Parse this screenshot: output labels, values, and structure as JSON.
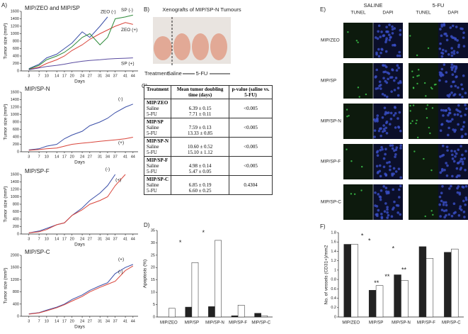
{
  "panel_labels": [
    "A)",
    "B)",
    "C)",
    "D)",
    "E)",
    "F)"
  ],
  "photo": {
    "title": "Xenografts of MIP/SP-N Tumours",
    "treatment": "Treatment:",
    "saline": "Saline",
    "fu": "5-FU"
  },
  "table": {
    "header": [
      "Treatment",
      "Mean tumor doubling time (days)",
      "p-value (saline vs. 5-FU)"
    ],
    "groups": [
      {
        "name": "MIP/ZEO",
        "rows": [
          [
            "Saline",
            "6.39 ± 0.15"
          ],
          [
            "5-FU",
            "7.71 ± 0.11"
          ]
        ],
        "p": "<0.005"
      },
      {
        "name": "MIP/SP",
        "rows": [
          [
            "Saline",
            "7.59 ± 0.13"
          ],
          [
            "5-FU",
            "13.33 ± 0.85"
          ]
        ],
        "p": "<0.005"
      },
      {
        "name": "MIP/SP-N",
        "rows": [
          [
            "Saline",
            "10.60 ± 0.52"
          ],
          [
            "5-FU",
            "15.10 ± 1.12"
          ]
        ],
        "p": "<0.005"
      },
      {
        "name": "MIP/SP-F",
        "rows": [
          [
            "Saline",
            "4.98 ± 0.14"
          ],
          [
            "5-FU",
            "5.47 ± 0.05"
          ]
        ],
        "p": "<0.005"
      },
      {
        "name": "MIP/SP-C",
        "rows": [
          [
            "Saline",
            "6.85 ± 0.19"
          ],
          [
            "5-FU",
            "6.60 ± 0.25"
          ]
        ],
        "p": "0.4304"
      }
    ]
  },
  "micrographs": {
    "groups": [
      "SALINE",
      "5-FU"
    ],
    "stains": [
      "TUNEL",
      "DAPI",
      "TUNEL",
      "DAPI"
    ],
    "rows": [
      "MIP/ZEO",
      "MIP/SP",
      "MIP/SP-N",
      "MIP/SP-F",
      "MIP/SP-C"
    ]
  },
  "chart_data": [
    {
      "type": "line",
      "title": "MIP/ZEO and MIP/SP",
      "x_label": "Days",
      "y_label": "Tumor size (mm³)",
      "x": [
        3,
        7,
        10,
        14,
        17,
        20,
        24,
        27,
        31,
        34,
        37,
        41,
        44
      ],
      "xlim": [
        0,
        46
      ],
      "xticks": [
        3,
        7,
        10,
        14,
        17,
        20,
        24,
        27,
        31,
        34,
        37,
        41,
        44
      ],
      "ylim": [
        0,
        1600
      ],
      "yticks": [
        0,
        200,
        400,
        600,
        800,
        1000,
        1200,
        1400,
        1600
      ],
      "series": [
        {
          "name": "ZEO (-)",
          "color": "#3b4fa8",
          "values": [
            60,
            180,
            350,
            450,
            600,
            750,
            1050,
            900,
            1200,
            1450,
            null,
            null,
            null
          ]
        },
        {
          "name": "ZEO (+)",
          "color": "#d9443a",
          "values": [
            40,
            100,
            200,
            300,
            400,
            550,
            700,
            850,
            1000,
            1100,
            1200,
            1300,
            1250
          ]
        },
        {
          "name": "SP (-)",
          "color": "#2e8b3a",
          "values": [
            50,
            150,
            300,
            400,
            500,
            650,
            900,
            1000,
            700,
            900,
            1400,
            1450,
            1500
          ]
        },
        {
          "name": "SP (+)",
          "color": "#5a4ca0",
          "values": [
            30,
            80,
            120,
            150,
            180,
            220,
            260,
            280,
            300,
            320,
            330,
            340,
            350
          ]
        }
      ]
    },
    {
      "type": "line",
      "title": "MIP/SP-N",
      "x_label": "Days",
      "y_label": "Tumor size (mm³)",
      "x": [
        3,
        7,
        10,
        14,
        17,
        20,
        24,
        27,
        31,
        34,
        37,
        41,
        44
      ],
      "xlim": [
        0,
        46
      ],
      "xticks": [
        3,
        7,
        10,
        14,
        17,
        20,
        24,
        27,
        31,
        34,
        37,
        41,
        44
      ],
      "ylim": [
        0,
        1600
      ],
      "yticks": [
        0,
        200,
        400,
        600,
        800,
        1000,
        1200,
        1400,
        1600
      ],
      "series": [
        {
          "name": "(-)",
          "color": "#3b4fa8",
          "values": [
            50,
            80,
            150,
            200,
            350,
            450,
            550,
            700,
            800,
            900,
            1050,
            1200,
            1280
          ]
        },
        {
          "name": "(+)",
          "color": "#d9443a",
          "values": [
            40,
            60,
            80,
            100,
            150,
            200,
            230,
            250,
            280,
            300,
            320,
            350,
            390
          ]
        }
      ]
    },
    {
      "type": "line",
      "title": "MIP/SP-F",
      "x_label": "Days",
      "y_label": "Tumor size (mm³)",
      "x": [
        3,
        7,
        10,
        14,
        17,
        20,
        24,
        27,
        31,
        34,
        37,
        41,
        44
      ],
      "xlim": [
        0,
        46
      ],
      "xticks": [
        3,
        7,
        10,
        14,
        17,
        20,
        24,
        27,
        31,
        34,
        37,
        41,
        44
      ],
      "ylim": [
        0,
        1600
      ],
      "yticks": [
        0,
        200,
        400,
        600,
        800,
        1000,
        1200,
        1400,
        1600
      ],
      "series": [
        {
          "name": "(-)",
          "color": "#3b4fa8",
          "values": [
            30,
            80,
            150,
            250,
            300,
            500,
            700,
            900,
            1100,
            1300,
            1600,
            null,
            null
          ]
        },
        {
          "name": "(+)",
          "color": "#d9443a",
          "values": [
            30,
            60,
            120,
            250,
            300,
            500,
            650,
            800,
            900,
            1000,
            1300,
            1600,
            null
          ]
        }
      ]
    },
    {
      "type": "line",
      "title": "MIP/SP-C",
      "x_label": "Days",
      "y_label": "Tumor size (mm³)",
      "x": [
        3,
        7,
        10,
        14,
        17,
        20,
        24,
        27,
        31,
        34,
        37,
        41,
        44
      ],
      "xlim": [
        0,
        46
      ],
      "xticks": [
        3,
        7,
        10,
        14,
        17,
        20,
        24,
        27,
        31,
        34,
        37,
        41,
        44
      ],
      "ylim": [
        0,
        2000
      ],
      "yticks": [
        0,
        400,
        800,
        1200,
        1600,
        2000
      ],
      "series": [
        {
          "name": "(+)",
          "color": "#3b4fa8",
          "values": [
            80,
            120,
            200,
            300,
            400,
            550,
            700,
            850,
            1000,
            1100,
            1400,
            1600,
            1700
          ]
        },
        {
          "name": "(-)",
          "color": "#d9443a",
          "values": [
            70,
            110,
            180,
            280,
            380,
            500,
            650,
            800,
            950,
            1050,
            1150,
            1500,
            1650
          ]
        }
      ]
    },
    {
      "type": "bar",
      "y_label": "Apoptosis (%)",
      "categories": [
        "MIP/ZEO",
        "MIP/SP",
        "MIP/SP-N",
        "MIP/SP-F",
        "MIP/SP-C"
      ],
      "ylim": [
        0,
        35
      ],
      "yticks": [
        0,
        5,
        10,
        15,
        20,
        25,
        30,
        35
      ],
      "annotations": [
        "*",
        "*"
      ],
      "series": [
        {
          "color": "#222222",
          "values": [
            0,
            4,
            4.2,
            0.5,
            1.5
          ]
        },
        {
          "color": "#ffffff",
          "values": [
            3.5,
            22,
            31,
            4.8,
            0.5
          ]
        }
      ]
    },
    {
      "type": "bar",
      "y_label": "No. of vessels (CD31+)/mm2",
      "categories": [
        "MIP/ZEO",
        "MIP/SP",
        "MIP/SP-N",
        "MIP/SP-F",
        "MIP/SP-C"
      ],
      "ylim": [
        0,
        1.8
      ],
      "yticks": [
        0,
        0.2,
        0.4,
        0.6,
        0.8,
        1,
        1.2,
        1.4,
        1.6,
        1.8
      ],
      "annotations": [
        "*",
        "*",
        "*",
        "**",
        "**",
        "**"
      ],
      "series": [
        {
          "color": "#222222",
          "values": [
            1.55,
            0.57,
            0.9,
            1.5,
            1.38
          ]
        },
        {
          "color": "#ffffff",
          "values": [
            1.55,
            0.67,
            0.78,
            1.25,
            1.45
          ]
        }
      ]
    }
  ]
}
